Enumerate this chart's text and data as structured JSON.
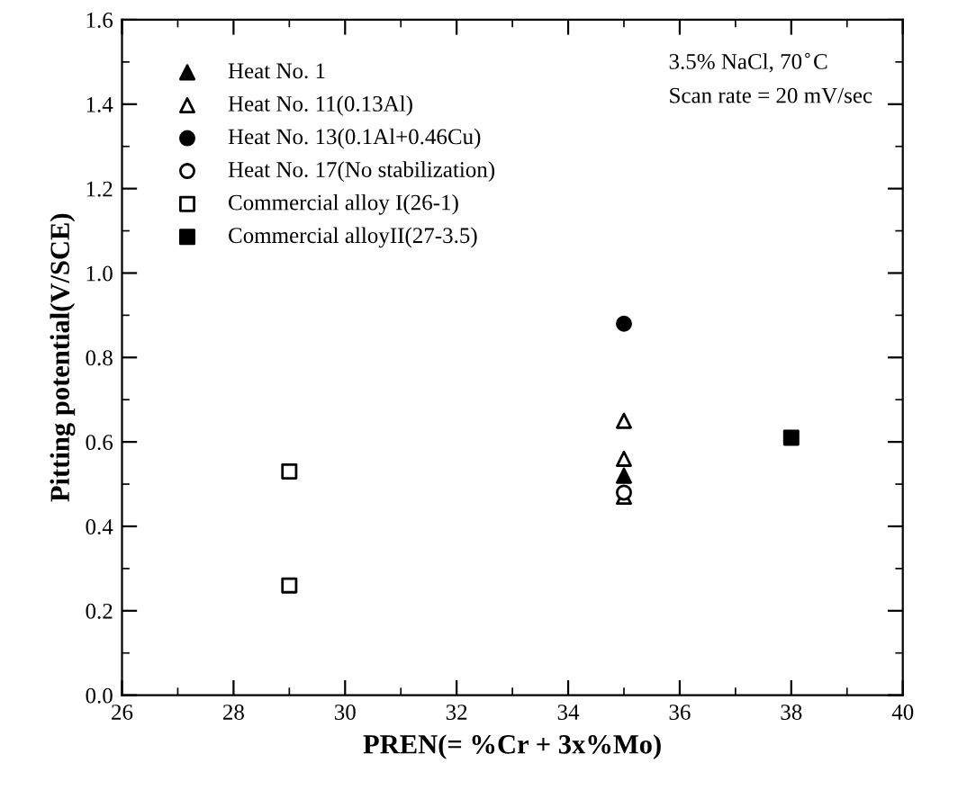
{
  "chart_data": {
    "type": "scatter",
    "xlabel": "PREN(= %Cr + 3x%Mo)",
    "ylabel": "Pitting potential(V/SCE)",
    "xlim": [
      26,
      40
    ],
    "xticks": [
      26,
      28,
      30,
      32,
      34,
      36,
      38,
      40
    ],
    "ylim": [
      0.0,
      1.6
    ],
    "yticks": [
      {
        "value": 0.0,
        "label": "0.0"
      },
      0.2,
      0.4,
      0.6,
      0.8,
      {
        "value": 1.0,
        "label": "1.0"
      },
      1.2,
      1.4,
      1.6
    ],
    "grid": false,
    "legend": "top left",
    "annotations": [
      "3.5% NaCl, 70$^{∘}$C",
      "Scan rate = 20 mV/sec"
    ],
    "series": [
      {
        "name": "Heat No. 1",
        "color": "#000000",
        "marker": "triangle",
        "x": [
          35
        ],
        "values": [
          0.52
        ]
      },
      {
        "name": "Heat No. 11(0.13Al)",
        "color": "#000000",
        "marker": "triangle-open",
        "x": [
          35,
          35,
          35
        ],
        "values": [
          0.65,
          0.56,
          0.47
        ]
      },
      {
        "name": "Heat No. 13(0.1Al+0.46Cu)",
        "color": "#000000",
        "marker": "circle",
        "x": [
          35
        ],
        "values": [
          0.88
        ]
      },
      {
        "name": "Heat No. 17(No stabilization)",
        "color": "#000000",
        "marker": "circle-open",
        "x": [
          35
        ],
        "values": [
          0.48
        ]
      },
      {
        "name": "Commercial alloy I(26-1)",
        "color": "#000000",
        "marker": "square-open",
        "x": [
          29,
          29
        ],
        "values": [
          0.53,
          0.26
        ]
      },
      {
        "name": "Commercial alloyII(27-3.5)",
        "color": "#000000",
        "marker": "square",
        "x": [
          38
        ],
        "values": [
          0.61
        ]
      }
    ]
  }
}
